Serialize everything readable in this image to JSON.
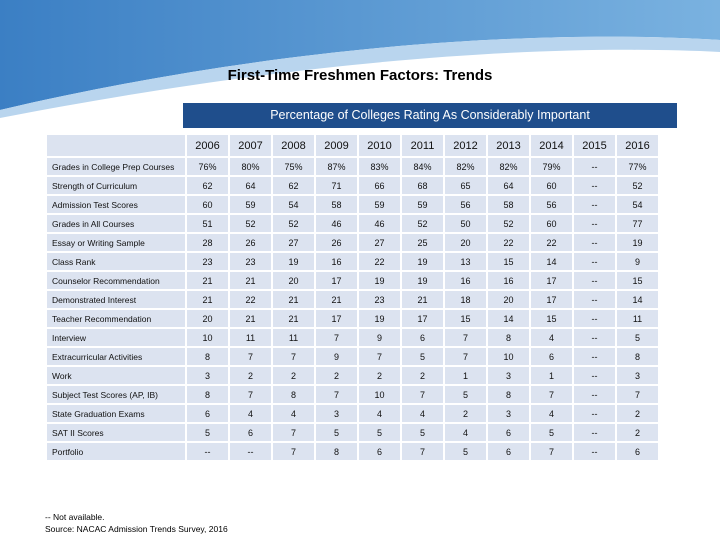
{
  "title": "First-Time Freshmen Factors: Trends",
  "table": {
    "caption": "Percentage of Colleges Rating As Considerably Important",
    "columns": [
      "2006",
      "2007",
      "2008",
      "2009",
      "2010",
      "2011",
      "2012",
      "2013",
      "2014",
      "2015",
      "2016"
    ],
    "rows": [
      {
        "label": "Grades in College Prep Courses",
        "cells": [
          "76%",
          "80%",
          "75%",
          "87%",
          "83%",
          "84%",
          "82%",
          "82%",
          "79%",
          "--",
          "77%"
        ]
      },
      {
        "label": "Strength of Curriculum",
        "cells": [
          "62",
          "64",
          "62",
          "71",
          "66",
          "68",
          "65",
          "64",
          "60",
          "--",
          "52"
        ]
      },
      {
        "label": "Admission Test Scores",
        "cells": [
          "60",
          "59",
          "54",
          "58",
          "59",
          "59",
          "56",
          "58",
          "56",
          "--",
          "54"
        ]
      },
      {
        "label": "Grades in All Courses",
        "cells": [
          "51",
          "52",
          "52",
          "46",
          "46",
          "52",
          "50",
          "52",
          "60",
          "--",
          "77"
        ]
      },
      {
        "label": "Essay or Writing Sample",
        "cells": [
          "28",
          "26",
          "27",
          "26",
          "27",
          "25",
          "20",
          "22",
          "22",
          "--",
          "19"
        ]
      },
      {
        "label": "Class Rank",
        "cells": [
          "23",
          "23",
          "19",
          "16",
          "22",
          "19",
          "13",
          "15",
          "14",
          "--",
          "9"
        ]
      },
      {
        "label": "Counselor Recommendation",
        "cells": [
          "21",
          "21",
          "20",
          "17",
          "19",
          "19",
          "16",
          "16",
          "17",
          "--",
          "15"
        ]
      },
      {
        "label": "Demonstrated Interest",
        "cells": [
          "21",
          "22",
          "21",
          "21",
          "23",
          "21",
          "18",
          "20",
          "17",
          "--",
          "14"
        ]
      },
      {
        "label": "Teacher Recommendation",
        "cells": [
          "20",
          "21",
          "21",
          "17",
          "19",
          "17",
          "15",
          "14",
          "15",
          "--",
          "11"
        ]
      },
      {
        "label": "Interview",
        "cells": [
          "10",
          "11",
          "11",
          "7",
          "9",
          "6",
          "7",
          "8",
          "4",
          "--",
          "5"
        ]
      },
      {
        "label": "Extracurricular Activities",
        "cells": [
          "8",
          "7",
          "7",
          "9",
          "7",
          "5",
          "7",
          "10",
          "6",
          "--",
          "8"
        ]
      },
      {
        "label": "Work",
        "cells": [
          "3",
          "2",
          "2",
          "2",
          "2",
          "2",
          "1",
          "3",
          "1",
          "--",
          "3"
        ]
      },
      {
        "label": "Subject Test Scores (AP, IB)",
        "cells": [
          "8",
          "7",
          "8",
          "7",
          "10",
          "7",
          "5",
          "8",
          "7",
          "--",
          "7"
        ]
      },
      {
        "label": "State Graduation Exams",
        "cells": [
          "6",
          "4",
          "4",
          "3",
          "4",
          "4",
          "2",
          "3",
          "4",
          "--",
          "2"
        ]
      },
      {
        "label": "SAT II Scores",
        "cells": [
          "5",
          "6",
          "7",
          "5",
          "5",
          "5",
          "4",
          "6",
          "5",
          "--",
          "2"
        ]
      },
      {
        "label": "Portfolio",
        "cells": [
          "--",
          "--",
          "7",
          "8",
          "6",
          "7",
          "5",
          "6",
          "7",
          "--",
          "6"
        ]
      }
    ]
  },
  "footnotes": [
    "-- Not available.",
    "Source: NACAC Admission Trends Survey, 2016"
  ]
}
